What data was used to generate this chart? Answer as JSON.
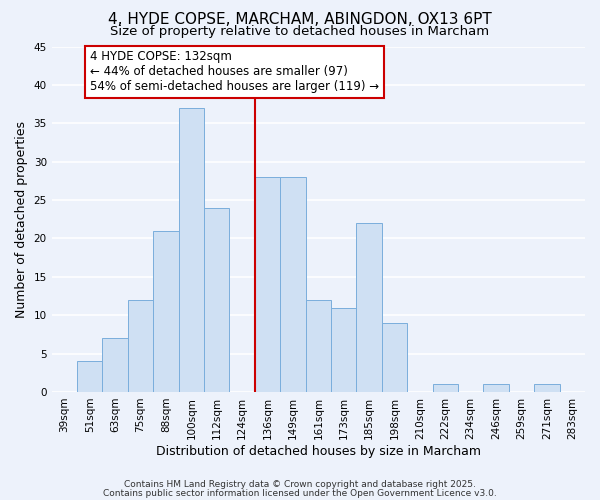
{
  "title": "4, HYDE COPSE, MARCHAM, ABINGDON, OX13 6PT",
  "subtitle": "Size of property relative to detached houses in Marcham",
  "xlabel": "Distribution of detached houses by size in Marcham",
  "ylabel": "Number of detached properties",
  "bin_labels": [
    "39sqm",
    "51sqm",
    "63sqm",
    "75sqm",
    "88sqm",
    "100sqm",
    "112sqm",
    "124sqm",
    "136sqm",
    "149sqm",
    "161sqm",
    "173sqm",
    "185sqm",
    "198sqm",
    "210sqm",
    "222sqm",
    "234sqm",
    "246sqm",
    "259sqm",
    "271sqm",
    "283sqm"
  ],
  "bar_values": [
    0,
    4,
    7,
    12,
    21,
    37,
    24,
    0,
    28,
    28,
    12,
    11,
    22,
    9,
    0,
    1,
    0,
    1,
    0,
    1,
    0
  ],
  "bar_color": "#cfe0f3",
  "bar_edge_color": "#7aaedc",
  "vline_x_label": "124sqm",
  "vline_color": "#cc0000",
  "ylim": [
    0,
    45
  ],
  "yticks": [
    0,
    5,
    10,
    15,
    20,
    25,
    30,
    35,
    40,
    45
  ],
  "annotation_text": "4 HYDE COPSE: 132sqm\n← 44% of detached houses are smaller (97)\n54% of semi-detached houses are larger (119) →",
  "annotation_box_color": "#ffffff",
  "annotation_box_edge": "#cc0000",
  "footer1": "Contains HM Land Registry data © Crown copyright and database right 2025.",
  "footer2": "Contains public sector information licensed under the Open Government Licence v3.0.",
  "background_color": "#edf2fb",
  "grid_color": "#ffffff",
  "title_fontsize": 11,
  "subtitle_fontsize": 9.5,
  "axis_label_fontsize": 9,
  "tick_fontsize": 7.5,
  "annotation_fontsize": 8.5,
  "footer_fontsize": 6.5
}
